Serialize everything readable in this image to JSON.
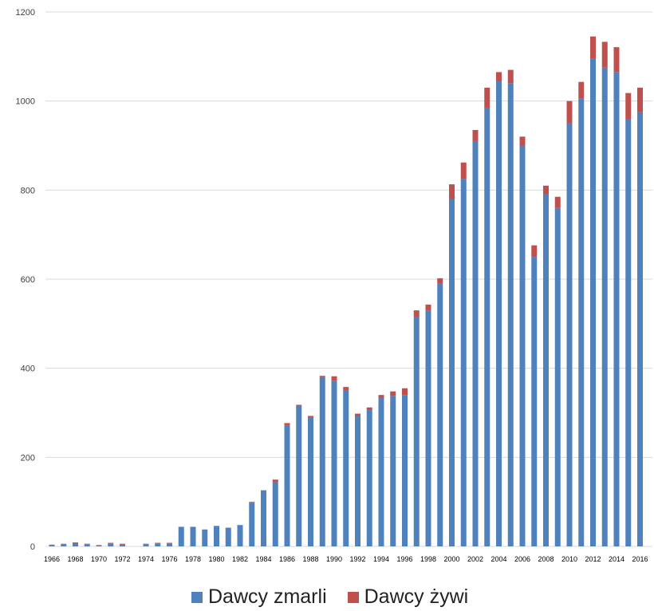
{
  "chart_data": {
    "type": "bar",
    "stacked": true,
    "categories": [
      1966,
      1967,
      1968,
      1969,
      1970,
      1971,
      1972,
      1973,
      1974,
      1975,
      1976,
      1977,
      1978,
      1979,
      1980,
      1981,
      1982,
      1983,
      1984,
      1985,
      1986,
      1987,
      1988,
      1989,
      1990,
      1991,
      1992,
      1993,
      1994,
      1995,
      1996,
      1997,
      1998,
      1999,
      2000,
      2001,
      2002,
      2003,
      2004,
      2005,
      2006,
      2007,
      2008,
      2009,
      2010,
      2011,
      2012,
      2013,
      2014,
      2015,
      2016
    ],
    "tick_labels": [
      "1966",
      "1968",
      "1970",
      "1972",
      "1974",
      "1976",
      "1978",
      "1980",
      "1982",
      "1984",
      "1986",
      "1988",
      "1990",
      "1992",
      "1994",
      "1996",
      "1998",
      "2000",
      "2002",
      "2004",
      "2006",
      "2008",
      "2010",
      "2012",
      "2014",
      "2016"
    ],
    "series": [
      {
        "name": "Dawcy zmarli",
        "color": "#4f81bd",
        "values": [
          2,
          5,
          8,
          5,
          1,
          6,
          4,
          0,
          5,
          7,
          7,
          44,
          44,
          38,
          46,
          42,
          48,
          98,
          126,
          144,
          272,
          316,
          290,
          380,
          372,
          350,
          292,
          306,
          334,
          338,
          340,
          515,
          530,
          590,
          780,
          825,
          910,
          985,
          1045,
          1040,
          900,
          650,
          790,
          760,
          950,
          1005,
          1095,
          1075,
          1065,
          960,
          975
        ]
      },
      {
        "name": "Dawcy żywi",
        "color": "#c0504d",
        "values": [
          2,
          1,
          1,
          1,
          2,
          2,
          2,
          0,
          1,
          1,
          1,
          0,
          0,
          0,
          0,
          0,
          0,
          2,
          0,
          6,
          5,
          2,
          3,
          3,
          10,
          8,
          6,
          6,
          6,
          10,
          15,
          15,
          13,
          12,
          33,
          37,
          25,
          45,
          20,
          30,
          20,
          26,
          20,
          25,
          50,
          38,
          50,
          58,
          56,
          58,
          55
        ]
      }
    ],
    "ylim": [
      0,
      1200
    ],
    "yticks": [
      0,
      200,
      400,
      600,
      800,
      1000,
      1200
    ],
    "grid": true,
    "legend_position": "bottom"
  }
}
